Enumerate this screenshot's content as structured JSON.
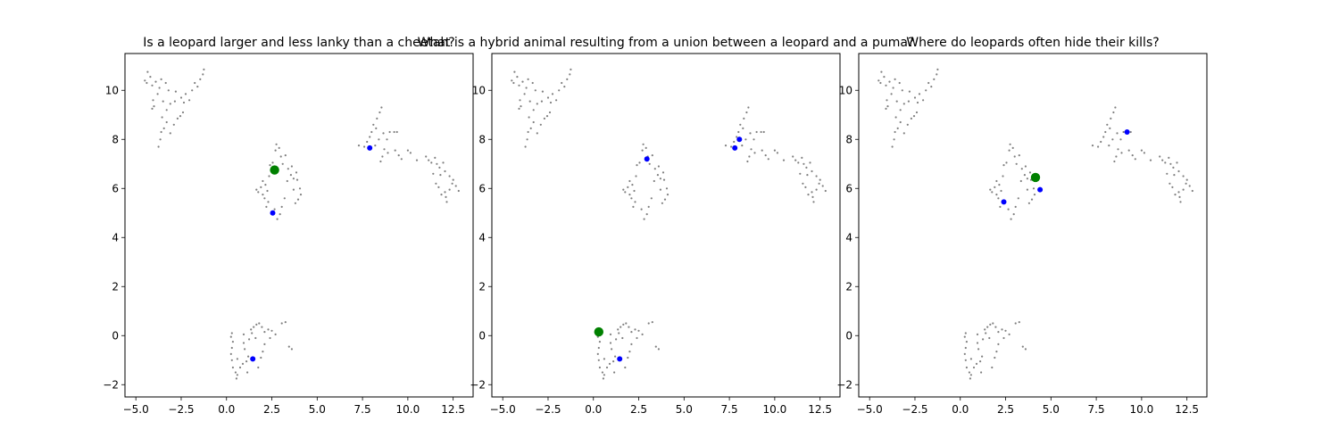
{
  "colors": {
    "points": "#808080",
    "neighbors": "#0000ff",
    "query": "#008000",
    "axes": "#000000",
    "background": "#ffffff"
  },
  "chart_data": [
    {
      "type": "scatter",
      "title": "Is a leopard larger and less lanky than a cheetah?",
      "xlabel": "",
      "ylabel": "",
      "xlim": [
        -5.6,
        13.6
      ],
      "ylim": [
        -2.5,
        11.5
      ],
      "xticks": [
        -5.0,
        -2.5,
        0.0,
        2.5,
        5.0,
        7.5,
        10.0,
        12.5
      ],
      "yticks": [
        -2,
        0,
        2,
        4,
        6,
        8,
        10
      ],
      "xtick_labels": [
        "−5.0",
        "−2.5",
        "0.0",
        "2.5",
        "5.0",
        "7.5",
        "10.0",
        "12.5"
      ],
      "ytick_labels": [
        "−2",
        "0",
        "2",
        "4",
        "6",
        "8",
        "10"
      ],
      "grid": false,
      "neighbors": [
        [
          7.9,
          7.65
        ],
        [
          2.55,
          5.0
        ],
        [
          1.45,
          -0.95
        ]
      ],
      "query": [
        2.65,
        6.75
      ]
    },
    {
      "type": "scatter",
      "title": "What is a hybrid animal resulting from a union between a leopard and a puma?",
      "xlabel": "",
      "ylabel": "",
      "xlim": [
        -5.6,
        13.6
      ],
      "ylim": [
        -2.5,
        11.5
      ],
      "xticks": [
        -5.0,
        -2.5,
        0.0,
        2.5,
        5.0,
        7.5,
        10.0,
        12.5
      ],
      "yticks": [
        -2,
        0,
        2,
        4,
        6,
        8,
        10
      ],
      "xtick_labels": [
        "−5.0",
        "−2.5",
        "0.0",
        "2.5",
        "5.0",
        "7.5",
        "10.0",
        "12.5"
      ],
      "ytick_labels": [
        "−2",
        "0",
        "2",
        "4",
        "6",
        "8",
        "10"
      ],
      "grid": false,
      "neighbors": [
        [
          2.95,
          7.2
        ],
        [
          8.05,
          8.0
        ],
        [
          7.8,
          7.65
        ],
        [
          1.45,
          -0.95
        ]
      ],
      "query": [
        0.3,
        0.15
      ]
    },
    {
      "type": "scatter",
      "title": "Where do leopards often hide their kills?",
      "xlabel": "",
      "ylabel": "",
      "xlim": [
        -5.6,
        13.6
      ],
      "ylim": [
        -2.5,
        11.5
      ],
      "xticks": [
        -5.0,
        -2.5,
        0.0,
        2.5,
        5.0,
        7.5,
        10.0,
        12.5
      ],
      "yticks": [
        -2,
        0,
        2,
        4,
        6,
        8,
        10
      ],
      "xtick_labels": [
        "−5.0",
        "−2.5",
        "0.0",
        "2.5",
        "5.0",
        "7.5",
        "10.0",
        "12.5"
      ],
      "ytick_labels": [
        "−2",
        "0",
        "2",
        "4",
        "6",
        "8",
        "10"
      ],
      "grid": false,
      "neighbors": [
        [
          9.2,
          8.3
        ],
        [
          4.4,
          5.95
        ],
        [
          2.4,
          5.45
        ]
      ],
      "query": [
        4.15,
        6.45
      ]
    }
  ],
  "background_points": [
    [
      -4.5,
      10.4
    ],
    [
      -4.35,
      10.75
    ],
    [
      -4.2,
      10.55
    ],
    [
      -4.4,
      10.3
    ],
    [
      -4.1,
      10.2
    ],
    [
      -3.9,
      10.35
    ],
    [
      -3.7,
      10.1
    ],
    [
      -3.6,
      10.45
    ],
    [
      -3.35,
      10.3
    ],
    [
      -3.2,
      10.0
    ],
    [
      -3.8,
      9.85
    ],
    [
      -4.05,
      9.6
    ],
    [
      -4.0,
      9.35
    ],
    [
      -4.1,
      9.25
    ],
    [
      -3.5,
      9.55
    ],
    [
      -3.3,
      9.2
    ],
    [
      -3.1,
      9.45
    ],
    [
      -3.55,
      8.9
    ],
    [
      -3.3,
      8.7
    ],
    [
      -3.45,
      8.45
    ],
    [
      -3.6,
      8.3
    ],
    [
      -3.65,
      8.0
    ],
    [
      -3.75,
      7.7
    ],
    [
      -3.1,
      8.25
    ],
    [
      -2.9,
      8.6
    ],
    [
      -2.7,
      8.85
    ],
    [
      -2.55,
      8.95
    ],
    [
      -2.85,
      9.55
    ],
    [
      -2.5,
      9.7
    ],
    [
      -2.35,
      9.5
    ],
    [
      -2.4,
      9.1
    ],
    [
      -2.25,
      9.85
    ],
    [
      -2.05,
      9.6
    ],
    [
      -1.9,
      10.0
    ],
    [
      -1.75,
      10.3
    ],
    [
      -1.6,
      10.15
    ],
    [
      -1.45,
      10.45
    ],
    [
      -1.3,
      10.65
    ],
    [
      -1.25,
      10.85
    ],
    [
      -2.8,
      9.95
    ],
    [
      1.65,
      5.95
    ],
    [
      1.75,
      5.85
    ],
    [
      1.9,
      6.05
    ],
    [
      2.0,
      5.75
    ],
    [
      2.1,
      5.6
    ],
    [
      2.0,
      6.3
    ],
    [
      2.15,
      6.15
    ],
    [
      2.3,
      5.45
    ],
    [
      2.35,
      6.5
    ],
    [
      2.25,
      5.9
    ],
    [
      2.4,
      6.95
    ],
    [
      2.55,
      7.05
    ],
    [
      2.7,
      7.55
    ],
    [
      2.75,
      7.8
    ],
    [
      2.9,
      7.65
    ],
    [
      3.0,
      7.3
    ],
    [
      3.1,
      7.0
    ],
    [
      3.25,
      7.35
    ],
    [
      3.4,
      6.8
    ],
    [
      3.55,
      6.55
    ],
    [
      3.7,
      6.4
    ],
    [
      3.6,
      6.9
    ],
    [
      3.85,
      6.65
    ],
    [
      3.9,
      6.35
    ],
    [
      4.05,
      6.0
    ],
    [
      4.1,
      5.75
    ],
    [
      3.95,
      5.55
    ],
    [
      3.8,
      5.4
    ],
    [
      3.7,
      5.95
    ],
    [
      3.2,
      5.6
    ],
    [
      3.05,
      5.25
    ],
    [
      2.95,
      4.95
    ],
    [
      2.8,
      4.75
    ],
    [
      2.65,
      5.15
    ],
    [
      3.35,
      6.3
    ],
    [
      2.2,
      5.25
    ],
    [
      7.3,
      7.75
    ],
    [
      7.6,
      7.7
    ],
    [
      7.75,
      7.9
    ],
    [
      7.9,
      8.1
    ],
    [
      8.0,
      8.3
    ],
    [
      8.1,
      8.6
    ],
    [
      8.25,
      8.45
    ],
    [
      8.3,
      8.85
    ],
    [
      8.45,
      9.1
    ],
    [
      8.55,
      9.3
    ],
    [
      8.4,
      8.0
    ],
    [
      8.65,
      8.25
    ],
    [
      8.85,
      8.0
    ],
    [
      9.0,
      8.3
    ],
    [
      9.25,
      8.3
    ],
    [
      9.4,
      8.3
    ],
    [
      8.7,
      7.6
    ],
    [
      8.6,
      7.3
    ],
    [
      8.9,
      7.45
    ],
    [
      9.3,
      7.55
    ],
    [
      9.5,
      7.35
    ],
    [
      9.65,
      7.2
    ],
    [
      10.0,
      7.55
    ],
    [
      10.15,
      7.45
    ],
    [
      10.5,
      7.15
    ],
    [
      8.2,
      7.75
    ],
    [
      8.5,
      7.1
    ],
    [
      11.0,
      7.3
    ],
    [
      11.15,
      7.15
    ],
    [
      11.3,
      7.05
    ],
    [
      11.5,
      7.25
    ],
    [
      11.6,
      7.0
    ],
    [
      11.75,
      6.85
    ],
    [
      11.8,
      6.55
    ],
    [
      11.95,
      7.05
    ],
    [
      12.05,
      6.7
    ],
    [
      11.55,
      6.2
    ],
    [
      11.7,
      6.05
    ],
    [
      12.05,
      5.85
    ],
    [
      12.1,
      5.65
    ],
    [
      12.15,
      5.45
    ],
    [
      12.3,
      5.95
    ],
    [
      12.45,
      6.2
    ],
    [
      12.65,
      6.1
    ],
    [
      12.8,
      5.9
    ],
    [
      12.5,
      6.35
    ],
    [
      11.4,
      6.6
    ],
    [
      12.3,
      6.5
    ],
    [
      11.85,
      5.75
    ],
    [
      0.3,
      0.1
    ],
    [
      0.25,
      -0.05
    ],
    [
      0.35,
      -0.25
    ],
    [
      0.3,
      -0.5
    ],
    [
      0.25,
      -0.75
    ],
    [
      0.3,
      -1.0
    ],
    [
      0.35,
      -1.3
    ],
    [
      0.5,
      -1.5
    ],
    [
      0.55,
      -1.75
    ],
    [
      0.6,
      -1.6
    ],
    [
      0.75,
      -1.3
    ],
    [
      0.9,
      -1.15
    ],
    [
      1.1,
      -1.05
    ],
    [
      1.2,
      -0.85
    ],
    [
      1.0,
      -0.55
    ],
    [
      0.95,
      -0.3
    ],
    [
      0.95,
      0.05
    ],
    [
      1.25,
      -0.15
    ],
    [
      1.35,
      0.25
    ],
    [
      1.5,
      0.35
    ],
    [
      1.65,
      0.45
    ],
    [
      1.8,
      0.5
    ],
    [
      1.95,
      0.35
    ],
    [
      2.1,
      0.15
    ],
    [
      2.3,
      0.25
    ],
    [
      2.5,
      0.2
    ],
    [
      2.4,
      -0.1
    ],
    [
      2.1,
      -0.35
    ],
    [
      2.0,
      -0.65
    ],
    [
      1.9,
      -0.9
    ],
    [
      1.75,
      -1.3
    ],
    [
      3.05,
      0.5
    ],
    [
      3.25,
      0.55
    ],
    [
      3.45,
      -0.45
    ],
    [
      3.6,
      -0.55
    ],
    [
      1.6,
      -0.1
    ],
    [
      1.4,
      0.1
    ],
    [
      1.15,
      -1.5
    ],
    [
      2.7,
      0.05
    ],
    [
      0.6,
      -0.95
    ]
  ]
}
